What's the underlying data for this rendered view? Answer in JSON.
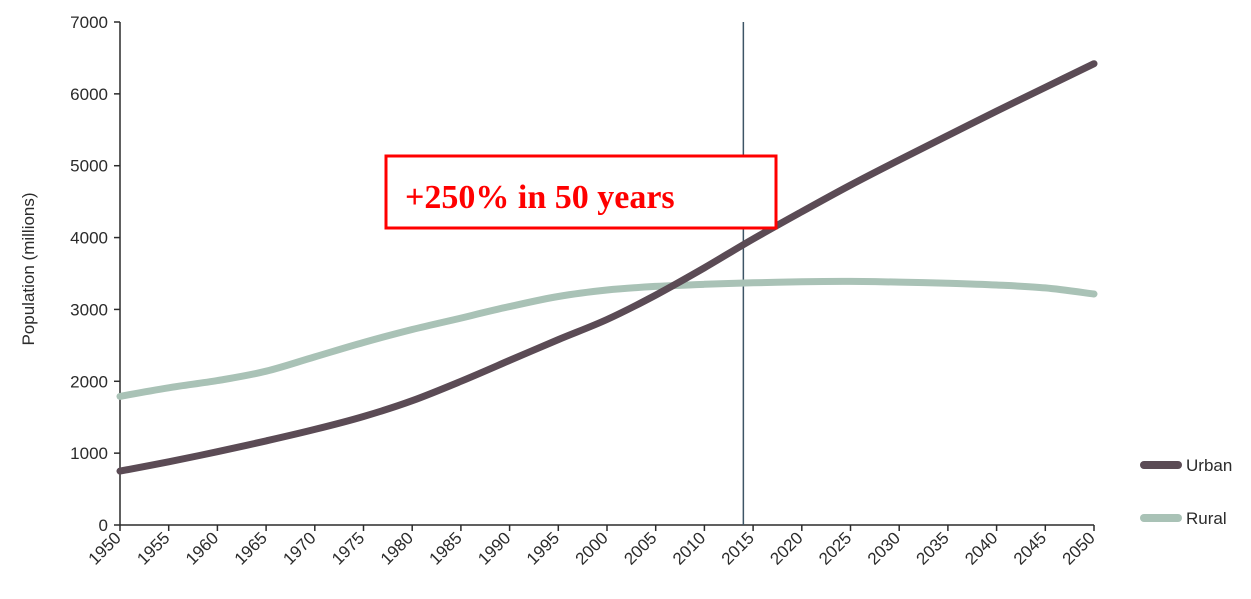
{
  "chart_data": {
    "type": "line",
    "ylabel": "Population (millions)",
    "xlabel": "",
    "ylim": [
      0,
      7000
    ],
    "xlim": [
      1950,
      2050
    ],
    "yticks": [
      0,
      1000,
      2000,
      3000,
      4000,
      5000,
      6000,
      7000
    ],
    "x": [
      1950,
      1955,
      1960,
      1965,
      1970,
      1975,
      1980,
      1985,
      1990,
      1995,
      2000,
      2005,
      2010,
      2015,
      2020,
      2025,
      2030,
      2035,
      2040,
      2045,
      2050
    ],
    "series": [
      {
        "name": "Urban",
        "color": "#5b4b55",
        "values": [
          750,
          880,
          1020,
          1170,
          1330,
          1510,
          1730,
          2000,
          2290,
          2580,
          2860,
          3200,
          3580,
          3980,
          4360,
          4730,
          5080,
          5420,
          5760,
          6090,
          6420
        ]
      },
      {
        "name": "Rural",
        "color": "#a9c2b6",
        "values": [
          1790,
          1910,
          2010,
          2140,
          2340,
          2540,
          2720,
          2880,
          3040,
          3180,
          3270,
          3320,
          3350,
          3370,
          3385,
          3390,
          3380,
          3365,
          3340,
          3300,
          3215
        ]
      }
    ],
    "vertical_marker_x": 2014,
    "legend_position": "bottom-right",
    "grid": false,
    "annotation": {
      "text": "+250% in 50 years",
      "color": "#ff0000"
    }
  }
}
